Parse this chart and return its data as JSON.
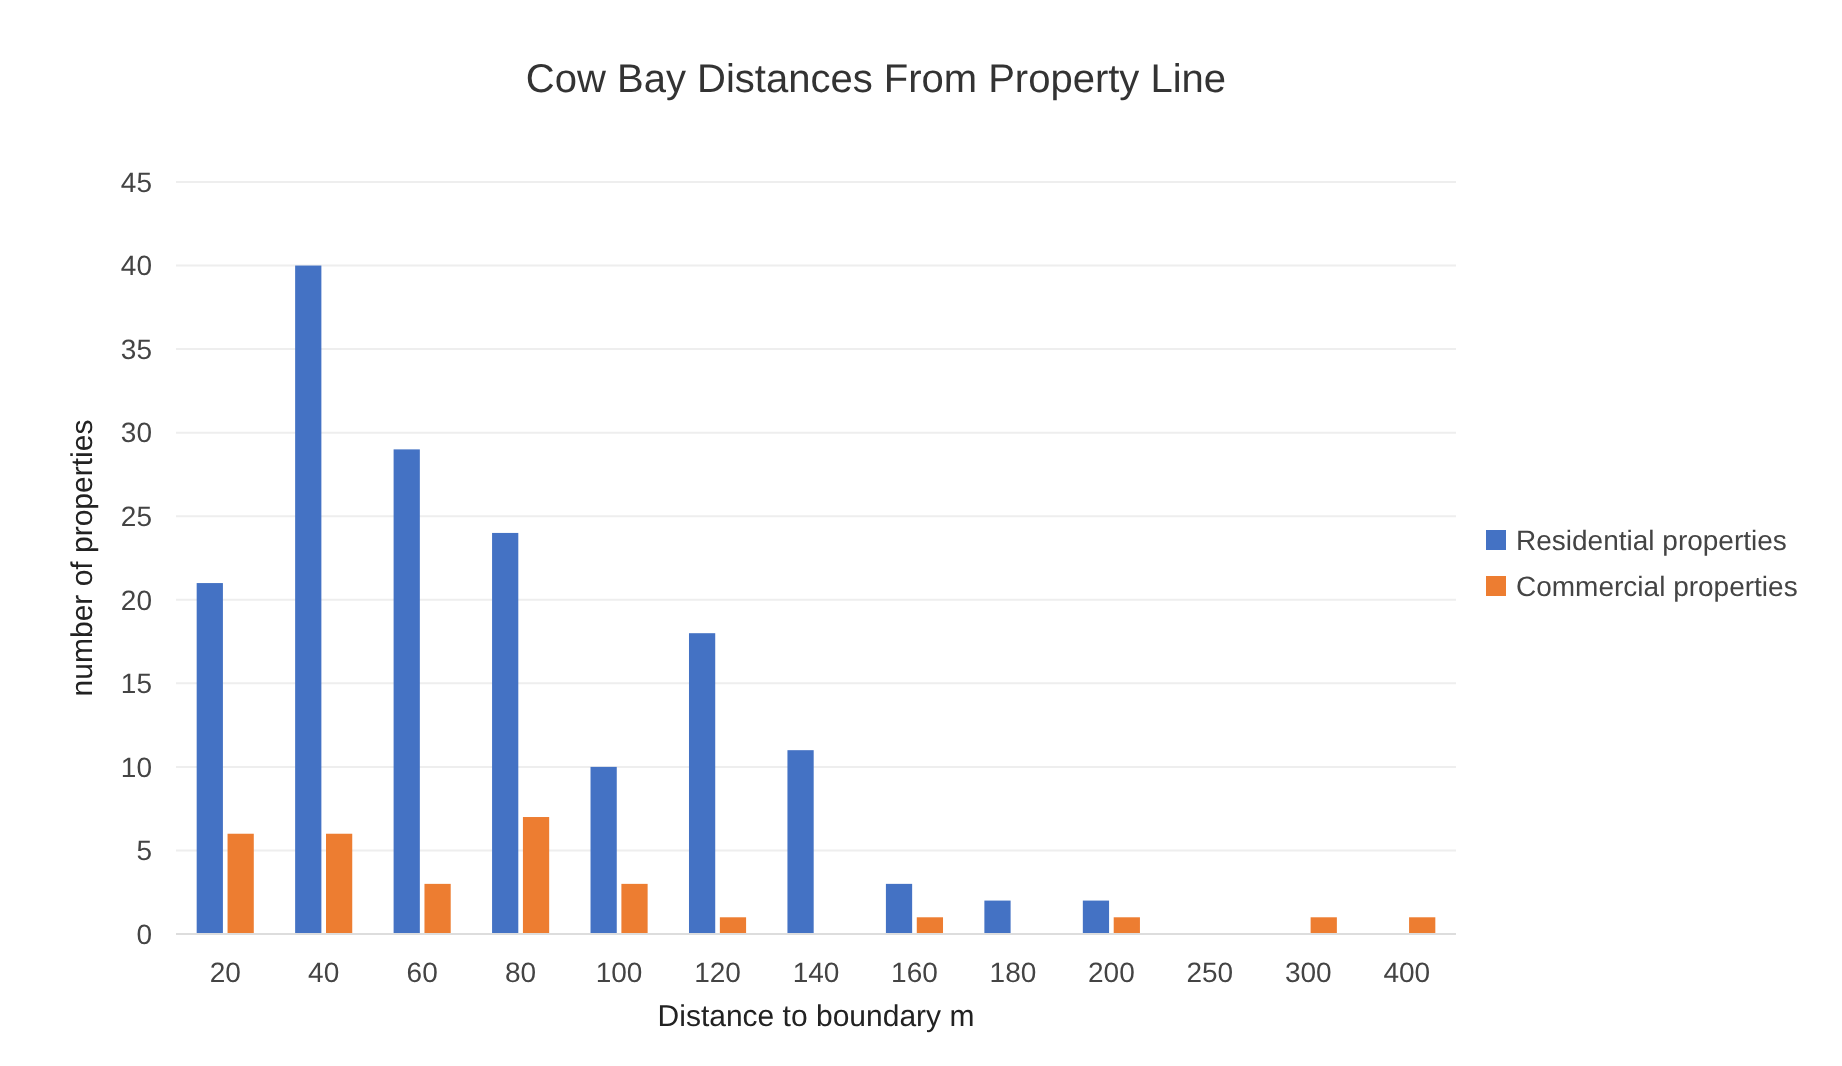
{
  "chart_data": {
    "type": "bar",
    "title": "Cow Bay Distances From Property Line",
    "xlabel": "Distance to boundary m",
    "ylabel": "number of properties",
    "categories": [
      "20",
      "40",
      "60",
      "80",
      "100",
      "120",
      "140",
      "160",
      "180",
      "200",
      "250",
      "300",
      "400"
    ],
    "series": [
      {
        "name": "Residential properties",
        "color": "#4472c4",
        "values": [
          21,
          40,
          29,
          24,
          10,
          18,
          11,
          3,
          2,
          2,
          0,
          0,
          0
        ]
      },
      {
        "name": "Commercial properties",
        "color": "#ed7d31",
        "values": [
          6,
          6,
          3,
          7,
          3,
          1,
          0,
          1,
          0,
          1,
          0,
          1,
          1
        ]
      }
    ],
    "ylim": [
      0,
      45
    ],
    "yticks": [
      0,
      5,
      10,
      15,
      20,
      25,
      30,
      35,
      40,
      45
    ],
    "grid": "y",
    "legend": "right"
  }
}
